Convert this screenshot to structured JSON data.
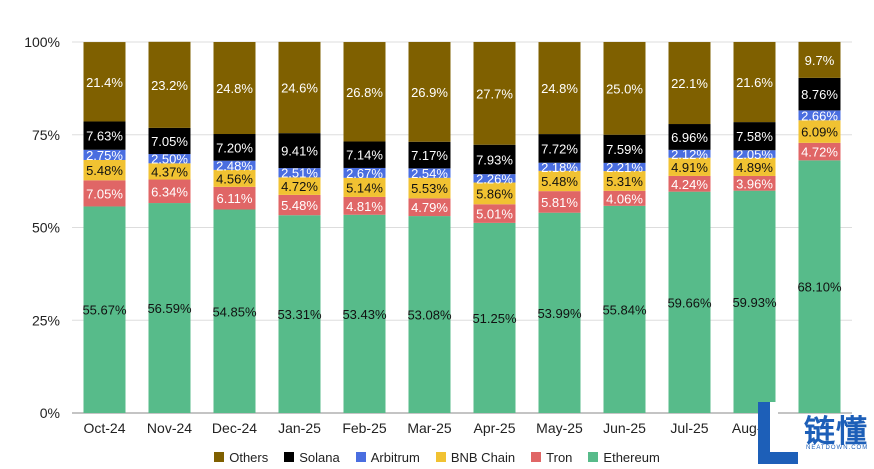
{
  "chart_data": {
    "type": "bar",
    "stacked": true,
    "y_axis": {
      "ticks": [
        "0%",
        "25%",
        "50%",
        "75%",
        "100%"
      ],
      "range": [
        0,
        100
      ],
      "grid": true
    },
    "categories": [
      "Oct-24",
      "Nov-24",
      "Dec-24",
      "Jan-25",
      "Feb-25",
      "Mar-25",
      "Apr-25",
      "May-25",
      "Jun-25",
      "Jul-25",
      "Aug-25",
      ""
    ],
    "series": [
      {
        "name": "Ethereum",
        "color": "#57bb8a",
        "values": [
          55.67,
          56.59,
          54.85,
          53.31,
          53.43,
          53.08,
          51.25,
          53.99,
          55.84,
          59.66,
          59.93,
          68.1
        ],
        "labels": [
          "55.67%",
          "56.59%",
          "54.85%",
          "53.31%",
          "53.43%",
          "53.08%",
          "51.25%",
          "53.99%",
          "55.84%",
          "59.66%",
          "59.93%",
          "68.10%"
        ]
      },
      {
        "name": "Tron",
        "color": "#e06666",
        "values": [
          7.05,
          6.34,
          6.11,
          5.48,
          4.81,
          4.79,
          5.01,
          5.81,
          4.06,
          4.24,
          3.96,
          4.72
        ],
        "labels": [
          "7.05%",
          "6.34%",
          "6.11%",
          "5.48%",
          "4.81%",
          "4.79%",
          "5.01%",
          "5.81%",
          "4.06%",
          "4.24%",
          "3.96%",
          "4.72%"
        ]
      },
      {
        "name": "BNB Chain",
        "color": "#f1c232",
        "values": [
          5.48,
          4.37,
          4.56,
          4.72,
          5.14,
          5.53,
          5.86,
          5.48,
          5.31,
          4.91,
          4.89,
          6.09
        ],
        "labels": [
          "5.48%",
          "4.37%",
          "4.56%",
          "4.72%",
          "5.14%",
          "5.53%",
          "5.86%",
          "5.48%",
          "5.31%",
          "4.91%",
          "4.89%",
          "6.09%"
        ]
      },
      {
        "name": "Arbitrum",
        "color": "#4a6ee0",
        "values": [
          2.75,
          2.5,
          2.48,
          2.51,
          2.67,
          2.54,
          2.26,
          2.18,
          2.21,
          2.12,
          2.05,
          2.66
        ],
        "labels": [
          "2.75%",
          "2.50%",
          "2.48%",
          "2.51%",
          "2.67%",
          "2.54%",
          "2.26%",
          "2.18%",
          "2.21%",
          "2.12%",
          "2.05%",
          "2.66%"
        ]
      },
      {
        "name": "Solana",
        "color": "#000000",
        "values": [
          7.63,
          7.05,
          7.2,
          9.41,
          7.14,
          7.17,
          7.93,
          7.72,
          7.59,
          6.96,
          7.58,
          8.76
        ],
        "labels": [
          "7.63%",
          "7.05%",
          "7.20%",
          "9.41%",
          "7.14%",
          "7.17%",
          "7.93%",
          "7.72%",
          "7.59%",
          "6.96%",
          "7.58%",
          "8.76%"
        ]
      },
      {
        "name": "Others",
        "color": "#7f6000",
        "values": [
          21.4,
          23.2,
          24.8,
          24.6,
          26.8,
          26.9,
          27.7,
          24.8,
          25.0,
          22.1,
          21.6,
          9.7
        ],
        "labels": [
          "21.4%",
          "23.2%",
          "24.8%",
          "24.6%",
          "26.8%",
          "26.9%",
          "27.7%",
          "24.8%",
          "25.0%",
          "22.1%",
          "21.6%",
          "9.7%"
        ]
      }
    ],
    "legend": {
      "position": "bottom",
      "order": [
        "Others",
        "Solana",
        "Arbitrum",
        "BNB Chain",
        "Tron",
        "Ethereum"
      ]
    }
  },
  "watermark": {
    "name": "链懂",
    "site": "NEATDOWN.COM"
  }
}
